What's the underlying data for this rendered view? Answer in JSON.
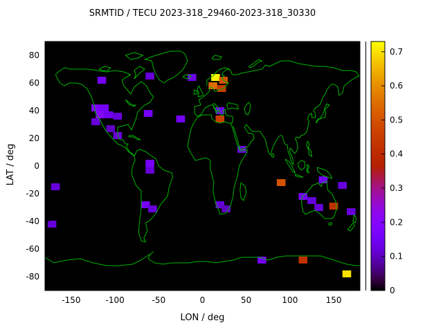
{
  "chart_data": {
    "type": "heatmap",
    "title": "SRMTID / TECU 2023-318_29460-2023-318_30330",
    "xlabel": "LON / deg",
    "ylabel": "LAT / deg",
    "xlim": [
      -180,
      180
    ],
    "ylim": [
      -90,
      90
    ],
    "xticks": [
      -150,
      -100,
      -50,
      0,
      50,
      100,
      150
    ],
    "yticks": [
      -80,
      -60,
      -40,
      -20,
      0,
      20,
      40,
      60,
      80
    ],
    "grid": false,
    "background": "#000000",
    "coastline_color": "#00b400",
    "cell_size_deg": {
      "lon": 10,
      "lat": 5
    },
    "colorbar": {
      "min": 0,
      "max": 0.73,
      "ticks": [
        0,
        0.1,
        0.2,
        0.3,
        0.4,
        0.5,
        0.6,
        0.7
      ],
      "colormap": "gnuplot",
      "position": "right"
    },
    "cells": [
      {
        "lon": -115,
        "lat": 62,
        "value": 0.15
      },
      {
        "lon": -60,
        "lat": 65,
        "value": 0.12
      },
      {
        "lon": -12,
        "lat": 64,
        "value": 0.13
      },
      {
        "lon": 15,
        "lat": 64,
        "value": 0.72
      },
      {
        "lon": 24,
        "lat": 62,
        "value": 0.5
      },
      {
        "lon": 12,
        "lat": 58,
        "value": 0.55
      },
      {
        "lon": 22,
        "lat": 56,
        "value": 0.45
      },
      {
        "lon": -122,
        "lat": 42,
        "value": 0.18
      },
      {
        "lon": -112,
        "lat": 42,
        "value": 0.15
      },
      {
        "lon": -117,
        "lat": 37,
        "value": 0.2
      },
      {
        "lon": -107,
        "lat": 37,
        "value": 0.14
      },
      {
        "lon": -97,
        "lat": 36,
        "value": 0.12
      },
      {
        "lon": -122,
        "lat": 32,
        "value": 0.12
      },
      {
        "lon": -62,
        "lat": 38,
        "value": 0.15
      },
      {
        "lon": -25,
        "lat": 34,
        "value": 0.15
      },
      {
        "lon": 20,
        "lat": 40,
        "value": 0.14
      },
      {
        "lon": 20,
        "lat": 34,
        "value": 0.45
      },
      {
        "lon": -105,
        "lat": 27,
        "value": 0.1
      },
      {
        "lon": -97,
        "lat": 22,
        "value": 0.12
      },
      {
        "lon": 45,
        "lat": 12,
        "value": 0.12
      },
      {
        "lon": -60,
        "lat": 2,
        "value": 0.15
      },
      {
        "lon": -60,
        "lat": -3,
        "value": 0.12
      },
      {
        "lon": -168,
        "lat": -15,
        "value": 0.12
      },
      {
        "lon": 90,
        "lat": -12,
        "value": 0.5
      },
      {
        "lon": 138,
        "lat": -10,
        "value": 0.15
      },
      {
        "lon": 160,
        "lat": -14,
        "value": 0.12
      },
      {
        "lon": 115,
        "lat": -22,
        "value": 0.15
      },
      {
        "lon": 125,
        "lat": -25,
        "value": 0.12
      },
      {
        "lon": 133,
        "lat": -30,
        "value": 0.12
      },
      {
        "lon": -65,
        "lat": -28,
        "value": 0.15
      },
      {
        "lon": -57,
        "lat": -31,
        "value": 0.12
      },
      {
        "lon": 20,
        "lat": -28,
        "value": 0.12
      },
      {
        "lon": 27,
        "lat": -31,
        "value": 0.1
      },
      {
        "lon": 150,
        "lat": -29,
        "value": 0.42
      },
      {
        "lon": 170,
        "lat": -33,
        "value": 0.12
      },
      {
        "lon": -172,
        "lat": -42,
        "value": 0.12
      },
      {
        "lon": 68,
        "lat": -68,
        "value": 0.15
      },
      {
        "lon": 115,
        "lat": -68,
        "value": 0.42
      },
      {
        "lon": 165,
        "lat": -78,
        "value": 0.7
      }
    ]
  }
}
